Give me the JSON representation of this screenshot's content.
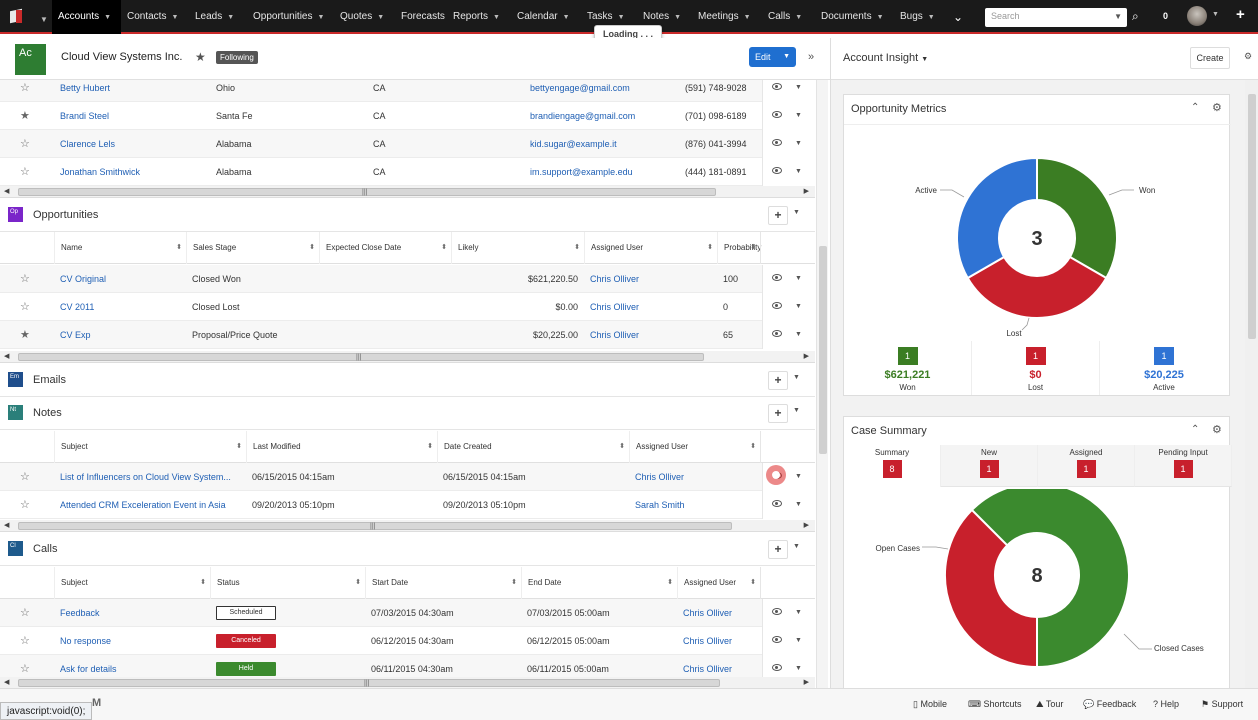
{
  "nav": {
    "items": [
      {
        "label": "Accounts",
        "dd": true
      },
      {
        "label": "Contacts",
        "dd": true
      },
      {
        "label": "Leads",
        "dd": true
      },
      {
        "label": "Opportunities",
        "dd": true
      },
      {
        "label": "Quotes",
        "dd": true
      },
      {
        "label": "Forecasts",
        "dd": false
      },
      {
        "label": "Reports",
        "dd": true
      },
      {
        "label": "Calendar",
        "dd": true
      },
      {
        "label": "Tasks",
        "dd": true
      },
      {
        "label": "Notes",
        "dd": true
      },
      {
        "label": "Meetings",
        "dd": true
      },
      {
        "label": "Calls",
        "dd": true
      },
      {
        "label": "Documents",
        "dd": true
      },
      {
        "label": "Bugs",
        "dd": true
      }
    ],
    "search_placeholder": "Search",
    "notification_count": "0",
    "loading": "Loading . . ."
  },
  "record": {
    "badge": "Ac",
    "name": "Cloud View Systems Inc.",
    "following": "Following",
    "edit": "Edit"
  },
  "contacts": [
    {
      "name": "Betty Hubert",
      "city": "Ohio",
      "state": "CA",
      "email": "bettyengage@gmail.com",
      "phone": "(591) 748-9028",
      "starred": false
    },
    {
      "name": "Brandi Steel",
      "city": "Santa Fe",
      "state": "CA",
      "email": "brandiengage@gmail.com",
      "phone": "(701) 098-6189",
      "starred": true
    },
    {
      "name": "Clarence Lels",
      "city": "Alabama",
      "state": "CA",
      "email": "kid.sugar@example.it",
      "phone": "(876) 041-3994",
      "starred": false
    },
    {
      "name": "Jonathan Smithwick",
      "city": "Alabama",
      "state": "CA",
      "email": "im.support@example.edu",
      "phone": "(444) 181-0891",
      "starred": false
    }
  ],
  "opportunities": {
    "icon": "Op",
    "title": "Opportunities",
    "columns": [
      "Name",
      "Sales Stage",
      "Expected Close Date",
      "Likely",
      "Assigned User",
      "Probability"
    ],
    "rows": [
      {
        "name": "CV Original",
        "stage": "Closed Won",
        "close": "",
        "likely": "$621,220.50",
        "user": "Chris Olliver",
        "prob": "100",
        "starred": false
      },
      {
        "name": "CV 2011",
        "stage": "Closed Lost",
        "close": "",
        "likely": "$0.00",
        "user": "Chris Olliver",
        "prob": "0",
        "starred": false
      },
      {
        "name": "CV Exp",
        "stage": "Proposal/Price Quote",
        "close": "",
        "likely": "$20,225.00",
        "user": "Chris Olliver",
        "prob": "65",
        "starred": true
      }
    ]
  },
  "emails": {
    "icon": "Em",
    "title": "Emails"
  },
  "notes": {
    "icon": "Nt",
    "title": "Notes",
    "columns": [
      "Subject",
      "Last Modified",
      "Date Created",
      "Assigned User"
    ],
    "rows": [
      {
        "subject": "List of Influencers on Cloud View System...",
        "modified": "06/15/2015 04:15am",
        "created": "06/15/2015 04:15am",
        "user": "Chris Olliver"
      },
      {
        "subject": "Attended CRM Exceleration Event in Asia",
        "modified": "09/20/2013 05:10pm",
        "created": "09/20/2013 05:10pm",
        "user": "Sarah Smith"
      }
    ]
  },
  "calls": {
    "icon": "Cl",
    "title": "Calls",
    "columns": [
      "Subject",
      "Status",
      "Start Date",
      "End Date",
      "Assigned User"
    ],
    "rows": [
      {
        "subject": "Feedback",
        "status": "Scheduled",
        "status_color": "#ffffff",
        "status_text": "#333333",
        "start": "07/03/2015 04:30am",
        "end": "07/03/2015 05:00am",
        "user": "Chris Olliver"
      },
      {
        "subject": "No response",
        "status": "Canceled",
        "status_color": "#c8202c",
        "status_text": "#ffffff",
        "start": "06/12/2015 04:30am",
        "end": "06/12/2015 05:00am",
        "user": "Chris Olliver"
      },
      {
        "subject": "Ask for details",
        "status": "Held",
        "status_color": "#3b8a2e",
        "status_text": "#ffffff",
        "start": "06/11/2015 04:30am",
        "end": "06/11/2015 05:00am",
        "user": "Chris Olliver"
      }
    ]
  },
  "insight": {
    "title": "Account Insight",
    "create": "Create"
  },
  "opp_metrics": {
    "title": "Opportunity Metrics",
    "total": "3",
    "slices": [
      {
        "label": "Won",
        "value": 1,
        "color": "#3b7d23"
      },
      {
        "label": "Lost",
        "value": 1,
        "color": "#c8202c"
      },
      {
        "label": "Active",
        "value": 1,
        "color": "#2f73d4"
      }
    ],
    "metrics": [
      {
        "count": "1",
        "amount": "$621,221",
        "label": "Won",
        "color": "#3b7d23"
      },
      {
        "count": "1",
        "amount": "$0",
        "label": "Lost",
        "color": "#c8202c"
      },
      {
        "count": "1",
        "amount": "$20,225",
        "label": "Active",
        "color": "#2f73d4"
      }
    ]
  },
  "case_summary": {
    "title": "Case Summary",
    "tabs": [
      {
        "label": "Summary",
        "count": "8"
      },
      {
        "label": "New",
        "count": "1"
      },
      {
        "label": "Assigned",
        "count": "1"
      },
      {
        "label": "Pending Input",
        "count": "1"
      }
    ],
    "total": "8",
    "slices": [
      {
        "label": "Open Cases",
        "value": 3,
        "color": "#c8202c"
      },
      {
        "label": "Closed Cases",
        "value": 5,
        "color": "#3b8a2e"
      }
    ]
  },
  "footer": {
    "status_url": "javascript:void(0);",
    "mobile": "Mobile",
    "shortcuts": "Shortcuts",
    "tour": "Tour",
    "feedback": "Feedback",
    "help": "Help",
    "support": "Support"
  }
}
